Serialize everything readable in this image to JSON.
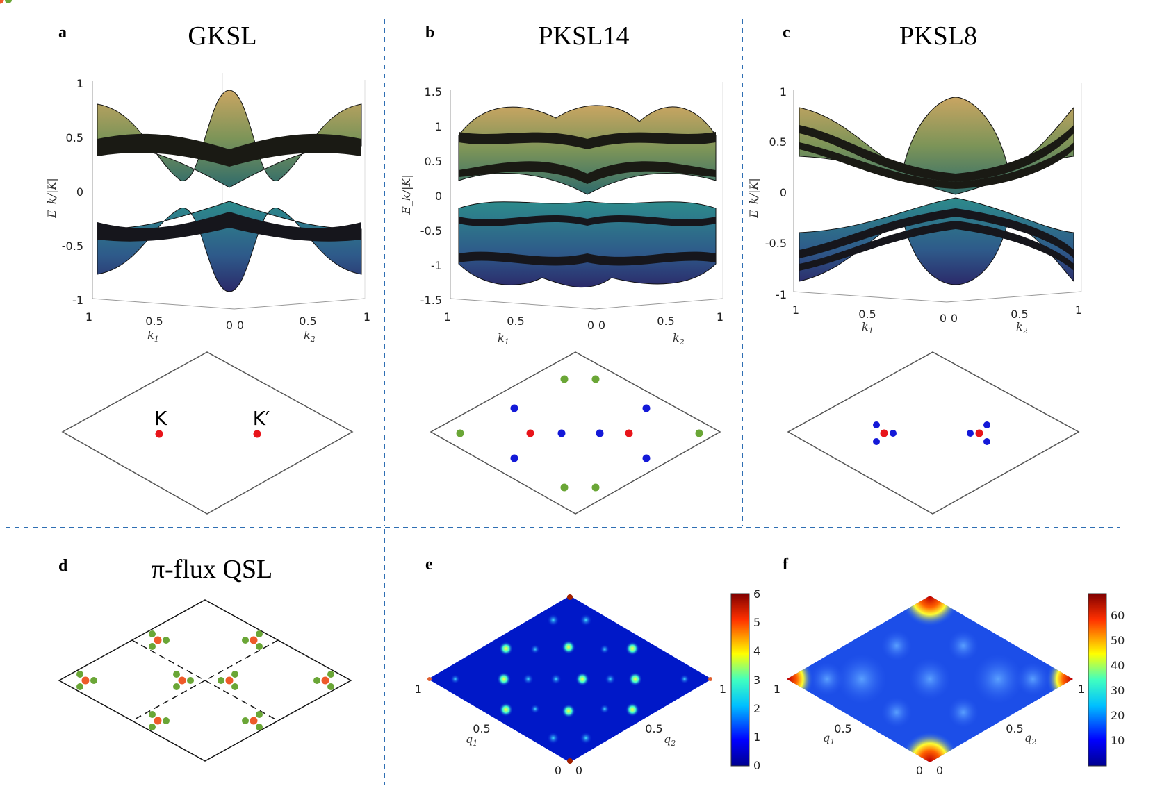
{
  "figure": {
    "panels": [
      {
        "letter": "a",
        "title": "GKSL"
      },
      {
        "letter": "b",
        "title": "PKSL14"
      },
      {
        "letter": "c",
        "title": "PKSL8"
      },
      {
        "letter": "d",
        "title": "π-flux QSL"
      },
      {
        "letter": "e",
        "title": ""
      },
      {
        "letter": "f",
        "title": ""
      }
    ],
    "band_axis": {
      "ylabel": "E_k/|K|",
      "k1_label": "k",
      "k1_sub": "1",
      "k2_label": "k",
      "k2_sub": "2",
      "a_yticks": [
        "1",
        "0.5",
        "0",
        "-0.5",
        "-1"
      ],
      "b_yticks": [
        "1.5",
        "1",
        "0.5",
        "0",
        "-0.5",
        "-1",
        "-1.5"
      ],
      "c_yticks": [
        "1",
        "0.5",
        "0",
        "-0.5",
        "-1"
      ],
      "k1_ticks": [
        "1",
        "0.5",
        "0"
      ],
      "k2_ticks": [
        "0",
        "0.5",
        "1"
      ]
    },
    "bz_labels": {
      "K": "K",
      "Kp": "K′"
    },
    "map_axis": {
      "q1_label": "q",
      "q1_sub": "1",
      "q2_label": "q",
      "q2_sub": "2",
      "ticks": [
        "1",
        "0.5",
        "0",
        "0",
        "0.5",
        "1"
      ]
    },
    "colorbar_e": {
      "ticks": [
        "6",
        "5",
        "4",
        "3",
        "2",
        "1",
        "0"
      ]
    },
    "colorbar_f": {
      "ticks": [
        "60",
        "50",
        "40",
        "30",
        "20",
        "10"
      ]
    },
    "colors": {
      "divider": "#2f6fb3",
      "red_point": "#e8141a",
      "blue_point": "#1419d8",
      "green_point": "#6aa636",
      "orange_point": "#ee5a2a"
    }
  }
}
